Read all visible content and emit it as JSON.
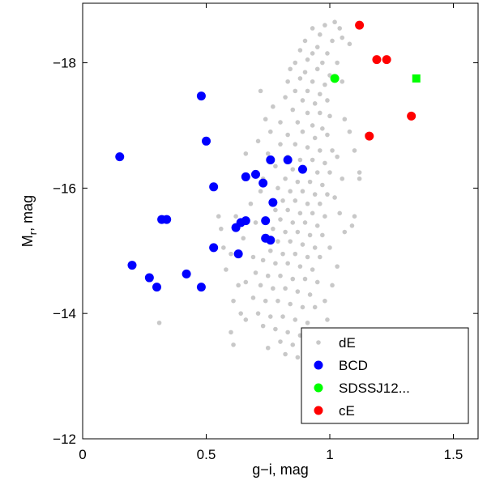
{
  "chart_data": {
    "type": "scatter",
    "xlabel": "g−i, mag",
    "ylabel": {
      "main": "M",
      "sub": "r",
      "rest": ", mag"
    },
    "xlim": [
      0,
      1.6
    ],
    "ylim": [
      -18.95,
      -12
    ],
    "y_inverted": true,
    "xticks": [
      0,
      0.5,
      1,
      1.5
    ],
    "xtick_labels": [
      "0",
      "0.5",
      "1",
      "1.5"
    ],
    "yticks": [
      -18,
      -16,
      -14,
      -12
    ],
    "ytick_labels": [
      "−18",
      "−16",
      "−14",
      "−12"
    ],
    "legend_position": "bottom-right",
    "grid": false,
    "series": [
      {
        "name": "dE",
        "marker": "circle",
        "size": "small",
        "color": "#c8c8c8",
        "points": [
          [
            1.02,
            -18.65
          ],
          [
            0.98,
            -18.6
          ],
          [
            0.93,
            -18.55
          ],
          [
            1.04,
            -18.55
          ],
          [
            0.96,
            -18.45
          ],
          [
            1.05,
            -18.4
          ],
          [
            0.9,
            -18.35
          ],
          [
            1.01,
            -18.35
          ],
          [
            0.95,
            -18.25
          ],
          [
            1.08,
            -18.3
          ],
          [
            0.88,
            -18.2
          ],
          [
            0.93,
            -18.15
          ],
          [
            0.99,
            -18.15
          ],
          [
            0.86,
            -18.0
          ],
          [
            0.91,
            -18.05
          ],
          [
            0.97,
            -18.0
          ],
          [
            1.03,
            -18.0
          ],
          [
            0.84,
            -17.9
          ],
          [
            0.9,
            -17.85
          ],
          [
            0.95,
            -17.9
          ],
          [
            1.0,
            -17.8
          ],
          [
            0.83,
            -17.7
          ],
          [
            0.88,
            -17.75
          ],
          [
            0.93,
            -17.7
          ],
          [
            0.98,
            -17.65
          ],
          [
            1.05,
            -17.7
          ],
          [
            0.86,
            -17.55
          ],
          [
            0.91,
            -17.55
          ],
          [
            0.96,
            -17.5
          ],
          [
            0.72,
            -17.55
          ],
          [
            0.82,
            -17.45
          ],
          [
            0.89,
            -17.4
          ],
          [
            0.94,
            -17.35
          ],
          [
            0.99,
            -17.4
          ],
          [
            0.77,
            -17.3
          ],
          [
            0.85,
            -17.25
          ],
          [
            0.91,
            -17.2
          ],
          [
            0.96,
            -17.2
          ],
          [
            1.0,
            -17.15
          ],
          [
            0.74,
            -17.1
          ],
          [
            0.8,
            -17.05
          ],
          [
            0.87,
            -17.05
          ],
          [
            0.93,
            -17.0
          ],
          [
            0.97,
            -16.95
          ],
          [
            0.76,
            -16.9
          ],
          [
            0.83,
            -16.85
          ],
          [
            0.89,
            -16.9
          ],
          [
            0.94,
            -16.8
          ],
          [
            0.99,
            -16.85
          ],
          [
            0.71,
            -16.75
          ],
          [
            0.8,
            -16.7
          ],
          [
            0.86,
            -16.7
          ],
          [
            0.91,
            -16.65
          ],
          [
            0.96,
            -16.6
          ],
          [
            1.01,
            -16.6
          ],
          [
            0.66,
            -16.55
          ],
          [
            0.75,
            -16.55
          ],
          [
            0.83,
            -16.5
          ],
          [
            0.88,
            -16.45
          ],
          [
            0.93,
            -16.45
          ],
          [
            0.98,
            -16.4
          ],
          [
            0.78,
            -16.35
          ],
          [
            0.85,
            -16.3
          ],
          [
            0.9,
            -16.3
          ],
          [
            0.95,
            -16.25
          ],
          [
            1.0,
            -16.25
          ],
          [
            0.82,
            -16.15
          ],
          [
            0.87,
            -16.1
          ],
          [
            0.92,
            -16.1
          ],
          [
            0.97,
            -16.05
          ],
          [
            0.79,
            -16.0
          ],
          [
            0.84,
            -15.95
          ],
          [
            0.89,
            -15.95
          ],
          [
            0.94,
            -15.9
          ],
          [
            0.99,
            -15.9
          ],
          [
            0.81,
            -15.8
          ],
          [
            0.86,
            -15.8
          ],
          [
            0.91,
            -15.75
          ],
          [
            0.96,
            -15.75
          ],
          [
            0.78,
            -15.65
          ],
          [
            0.83,
            -15.65
          ],
          [
            0.88,
            -15.6
          ],
          [
            0.93,
            -15.6
          ],
          [
            0.98,
            -15.55
          ],
          [
            0.8,
            -15.5
          ],
          [
            0.85,
            -15.45
          ],
          [
            0.9,
            -15.45
          ],
          [
            0.95,
            -15.4
          ],
          [
            0.77,
            -15.35
          ],
          [
            0.82,
            -15.3
          ],
          [
            0.87,
            -15.3
          ],
          [
            0.92,
            -15.25
          ],
          [
            0.97,
            -15.25
          ],
          [
            0.74,
            -15.2
          ],
          [
            0.79,
            -15.15
          ],
          [
            0.84,
            -15.15
          ],
          [
            0.89,
            -15.1
          ],
          [
            0.94,
            -15.05
          ],
          [
            0.76,
            -15.0
          ],
          [
            0.81,
            -14.95
          ],
          [
            0.86,
            -14.95
          ],
          [
            0.91,
            -14.9
          ],
          [
            0.96,
            -14.9
          ],
          [
            0.73,
            -14.85
          ],
          [
            0.78,
            -14.8
          ],
          [
            0.83,
            -14.8
          ],
          [
            0.88,
            -14.75
          ],
          [
            0.93,
            -14.7
          ],
          [
            0.7,
            -14.65
          ],
          [
            0.75,
            -14.6
          ],
          [
            0.8,
            -14.6
          ],
          [
            0.85,
            -14.55
          ],
          [
            0.9,
            -14.55
          ],
          [
            0.95,
            -14.5
          ],
          [
            0.72,
            -14.45
          ],
          [
            0.77,
            -14.4
          ],
          [
            0.82,
            -14.4
          ],
          [
            0.87,
            -14.35
          ],
          [
            0.92,
            -14.3
          ],
          [
            0.69,
            -14.25
          ],
          [
            0.74,
            -14.2
          ],
          [
            0.79,
            -14.2
          ],
          [
            0.84,
            -14.15
          ],
          [
            0.89,
            -14.1
          ],
          [
            0.94,
            -14.1
          ],
          [
            0.71,
            -14.0
          ],
          [
            0.76,
            -13.95
          ],
          [
            0.81,
            -13.95
          ],
          [
            0.86,
            -13.9
          ],
          [
            0.91,
            -13.85
          ],
          [
            0.73,
            -13.8
          ],
          [
            0.78,
            -13.75
          ],
          [
            0.83,
            -13.7
          ],
          [
            0.88,
            -13.65
          ],
          [
            0.8,
            -13.55
          ],
          [
            0.85,
            -13.5
          ],
          [
            0.75,
            -13.45
          ],
          [
            0.82,
            -13.35
          ],
          [
            0.87,
            -13.3
          ],
          [
            1.06,
            -17.1
          ],
          [
            1.08,
            -16.9
          ],
          [
            1.03,
            -16.5
          ],
          [
            1.05,
            -16.15
          ],
          [
            1.02,
            -15.85
          ],
          [
            1.04,
            -15.6
          ],
          [
            1.06,
            -15.3
          ],
          [
            1.0,
            -15.05
          ],
          [
            1.03,
            -14.75
          ],
          [
            1.01,
            -14.45
          ],
          [
            0.98,
            -14.2
          ],
          [
            0.99,
            -13.9
          ],
          [
            1.1,
            -16.6
          ],
          [
            1.12,
            -16.15
          ],
          [
            1.15,
            -16.85
          ],
          [
            1.12,
            -16.25
          ],
          [
            0.96,
            -13.6
          ],
          [
            1.09,
            -15.4
          ],
          [
            1.1,
            -15.55
          ],
          [
            0.6,
            -14.95
          ],
          [
            0.58,
            -14.7
          ],
          [
            0.63,
            -14.45
          ],
          [
            0.61,
            -14.2
          ],
          [
            0.65,
            -15.2
          ],
          [
            0.57,
            -15.05
          ],
          [
            0.66,
            -13.9
          ],
          [
            0.6,
            -13.7
          ],
          [
            0.64,
            -14.0
          ],
          [
            0.56,
            -15.35
          ],
          [
            0.62,
            -15.55
          ],
          [
            0.68,
            -15.75
          ],
          [
            0.31,
            -13.85
          ],
          [
            0.61,
            -13.5
          ],
          [
            0.55,
            -15.55
          ],
          [
            0.69,
            -14.9
          ],
          [
            0.66,
            -14.5
          ],
          [
            0.72,
            -15.95
          ],
          [
            0.7,
            -15.45
          ],
          [
            0.73,
            -16.15
          ]
        ]
      },
      {
        "name": "BCD",
        "marker": "circle",
        "size": "large",
        "color": "#0000ff",
        "points": [
          [
            0.15,
            -16.5
          ],
          [
            0.2,
            -14.77
          ],
          [
            0.27,
            -14.57
          ],
          [
            0.3,
            -14.42
          ],
          [
            0.32,
            -15.5
          ],
          [
            0.34,
            -15.5
          ],
          [
            0.42,
            -14.63
          ],
          [
            0.48,
            -14.42
          ],
          [
            0.48,
            -17.47
          ],
          [
            0.5,
            -16.75
          ],
          [
            0.53,
            -16.02
          ],
          [
            0.53,
            -15.05
          ],
          [
            0.62,
            -15.37
          ],
          [
            0.63,
            -14.95
          ],
          [
            0.64,
            -15.45
          ],
          [
            0.66,
            -15.48
          ],
          [
            0.66,
            -16.18
          ],
          [
            0.7,
            -16.22
          ],
          [
            0.73,
            -16.08
          ],
          [
            0.74,
            -15.48
          ],
          [
            0.74,
            -15.2
          ],
          [
            0.76,
            -15.17
          ],
          [
            0.77,
            -15.77
          ],
          [
            0.76,
            -16.45
          ],
          [
            0.83,
            -16.45
          ],
          [
            0.89,
            -16.3
          ]
        ]
      },
      {
        "name": "SDSSJ12...",
        "marker": "mixed",
        "size": "large",
        "color": "#00ff00",
        "points": [
          [
            1.02,
            -17.75,
            "circle"
          ],
          [
            1.35,
            -17.75,
            "square"
          ]
        ]
      },
      {
        "name": "cE",
        "marker": "circle",
        "size": "large",
        "color": "#ff0000",
        "points": [
          [
            1.12,
            -18.6
          ],
          [
            1.19,
            -18.05
          ],
          [
            1.23,
            -18.05
          ],
          [
            1.33,
            -17.15
          ],
          [
            1.16,
            -16.83
          ]
        ]
      }
    ]
  }
}
